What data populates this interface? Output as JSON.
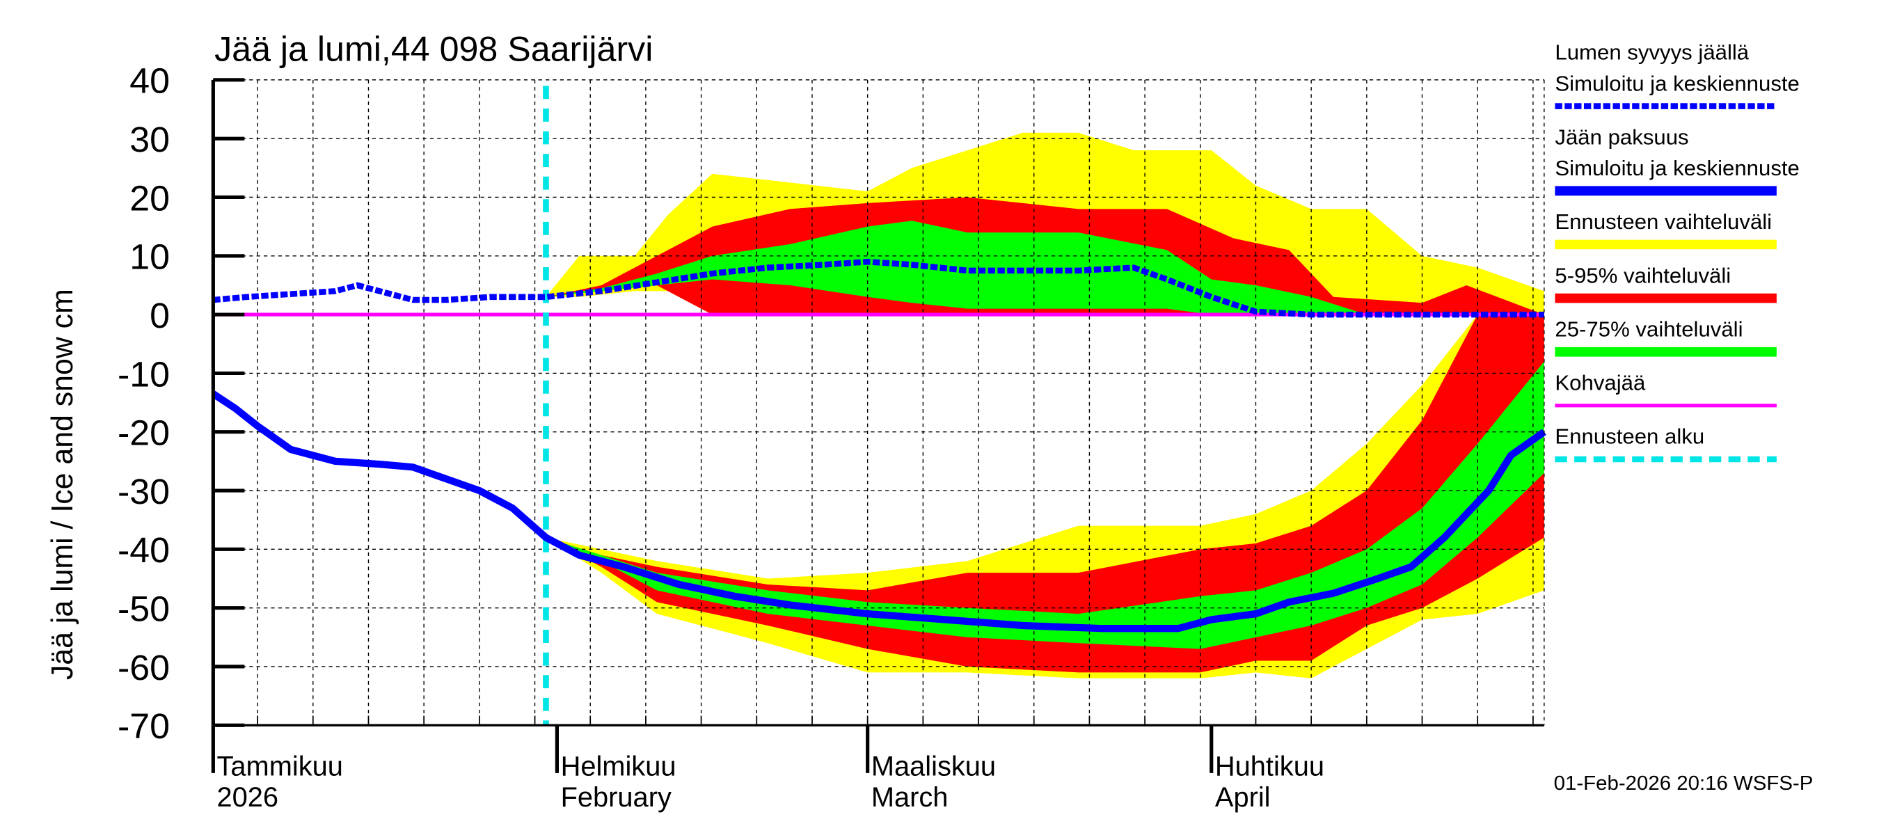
{
  "chart_data": {
    "type": "area",
    "title": "Jää ja lumi,44 098 Saarijärvi",
    "ylabel": "Jää ja lumi / Ice and snow    cm",
    "ylim": [
      -70,
      40
    ],
    "yticks": [
      40,
      30,
      20,
      10,
      0,
      -10,
      -20,
      -30,
      -40,
      -50,
      -60,
      -70
    ],
    "xlim": [
      "2026-01-01",
      "2026-05-01"
    ],
    "grid": true,
    "legend_placement": "right",
    "x_tick_labels": [
      {
        "date": "2026-01-01",
        "fi": "Tammikuu",
        "en": "2026"
      },
      {
        "date": "2026-02-01",
        "fi": "Helmikuu",
        "en": "February"
      },
      {
        "date": "2026-03-01",
        "fi": "Maaliskuu",
        "en": "March"
      },
      {
        "date": "2026-04-01",
        "fi": "Huhtikuu",
        "en": "April"
      }
    ],
    "forecast_start": "2026-01-31",
    "colors": {
      "yellow": "#ffff00",
      "red": "#ff0000",
      "green": "#00ff00",
      "blue": "#0000ff",
      "magenta": "#ff00ff",
      "cyan": "#00e5e5"
    },
    "snow_median": [
      [
        "2026-01-01",
        2.5
      ],
      [
        "2026-01-04",
        3
      ],
      [
        "2026-01-08",
        3.5
      ],
      [
        "2026-01-12",
        4
      ],
      [
        "2026-01-14",
        5
      ],
      [
        "2026-01-16",
        4
      ],
      [
        "2026-01-19",
        2.5
      ],
      [
        "2026-01-22",
        2.5
      ],
      [
        "2026-01-26",
        3
      ],
      [
        "2026-01-31",
        3
      ],
      [
        "2026-02-05",
        4
      ],
      [
        "2026-02-10",
        5.5
      ],
      [
        "2026-02-15",
        7
      ],
      [
        "2026-02-20",
        8
      ],
      [
        "2026-02-25",
        8.5
      ],
      [
        "2026-03-01",
        9
      ],
      [
        "2026-03-05",
        8.5
      ],
      [
        "2026-03-10",
        7.5
      ],
      [
        "2026-03-15",
        7.5
      ],
      [
        "2026-03-20",
        7.5
      ],
      [
        "2026-03-25",
        8
      ],
      [
        "2026-03-28",
        6
      ],
      [
        "2026-04-01",
        3
      ],
      [
        "2026-04-05",
        0.5
      ],
      [
        "2026-04-10",
        0
      ],
      [
        "2026-05-01",
        0
      ]
    ],
    "ice_median": [
      [
        "2026-01-01",
        -13.5
      ],
      [
        "2026-01-03",
        -16
      ],
      [
        "2026-01-05",
        -19
      ],
      [
        "2026-01-08",
        -23
      ],
      [
        "2026-01-12",
        -25
      ],
      [
        "2026-01-16",
        -25.5
      ],
      [
        "2026-01-19",
        -26
      ],
      [
        "2026-01-22",
        -28
      ],
      [
        "2026-01-25",
        -30
      ],
      [
        "2026-01-28",
        -33
      ],
      [
        "2026-01-31",
        -38
      ],
      [
        "2026-02-03",
        -41
      ],
      [
        "2026-02-07",
        -43
      ],
      [
        "2026-02-12",
        -46
      ],
      [
        "2026-02-17",
        -48
      ],
      [
        "2026-02-22",
        -49.5
      ],
      [
        "2026-03-01",
        -51
      ],
      [
        "2026-03-08",
        -52
      ],
      [
        "2026-03-15",
        -53
      ],
      [
        "2026-03-22",
        -53.5
      ],
      [
        "2026-03-29",
        -53.5
      ],
      [
        "2026-04-01",
        -52
      ],
      [
        "2026-04-05",
        -51
      ],
      [
        "2026-04-08",
        -49
      ],
      [
        "2026-04-12",
        -47.5
      ],
      [
        "2026-04-16",
        -45
      ],
      [
        "2026-04-19",
        -43
      ],
      [
        "2026-04-22",
        -38
      ],
      [
        "2026-04-26",
        -30
      ],
      [
        "2026-04-28",
        -24
      ],
      [
        "2026-05-01",
        -20
      ]
    ],
    "slush_ice": 0,
    "bands": {
      "snow_range": [
        [
          "2026-01-31",
          3,
          3
        ],
        [
          "2026-02-03",
          3,
          10
        ],
        [
          "2026-02-08",
          4,
          10
        ],
        [
          "2026-02-11",
          4,
          17
        ],
        [
          "2026-02-15",
          0,
          24
        ],
        [
          "2026-03-01",
          0,
          21
        ],
        [
          "2026-03-05",
          0,
          25
        ],
        [
          "2026-03-15",
          0,
          31
        ],
        [
          "2026-03-20",
          0,
          31
        ],
        [
          "2026-03-25",
          0,
          28
        ],
        [
          "2026-04-01",
          0,
          28
        ],
        [
          "2026-04-05",
          0,
          22
        ],
        [
          "2026-04-10",
          0,
          18
        ],
        [
          "2026-04-15",
          0,
          18
        ],
        [
          "2026-04-20",
          0,
          10
        ],
        [
          "2026-04-25",
          0,
          8
        ],
        [
          "2026-05-01",
          0,
          4
        ]
      ],
      "snow_5_95": [
        [
          "2026-01-31",
          3,
          3
        ],
        [
          "2026-02-05",
          4,
          5
        ],
        [
          "2026-02-10",
          5,
          10
        ],
        [
          "2026-02-15",
          0,
          15
        ],
        [
          "2026-02-22",
          0,
          18
        ],
        [
          "2026-03-01",
          0,
          19
        ],
        [
          "2026-03-10",
          0,
          20
        ],
        [
          "2026-03-20",
          0,
          18
        ],
        [
          "2026-03-28",
          0,
          18
        ],
        [
          "2026-04-03",
          0,
          13
        ],
        [
          "2026-04-08",
          0,
          11
        ],
        [
          "2026-04-12",
          0,
          3
        ],
        [
          "2026-04-20",
          0,
          2
        ],
        [
          "2026-04-24",
          0,
          5
        ],
        [
          "2026-05-01",
          0,
          0
        ]
      ],
      "snow_25_75": [
        [
          "2026-01-31",
          3,
          3
        ],
        [
          "2026-02-05",
          4,
          4.5
        ],
        [
          "2026-02-10",
          5,
          7
        ],
        [
          "2026-02-15",
          6,
          10
        ],
        [
          "2026-02-22",
          5,
          12
        ],
        [
          "2026-03-01",
          3,
          15
        ],
        [
          "2026-03-05",
          2,
          16
        ],
        [
          "2026-03-10",
          1,
          14
        ],
        [
          "2026-03-20",
          1,
          14
        ],
        [
          "2026-03-28",
          1,
          11
        ],
        [
          "2026-04-01",
          0,
          6
        ],
        [
          "2026-04-05",
          0,
          5
        ],
        [
          "2026-04-10",
          0,
          3
        ],
        [
          "2026-04-15",
          0,
          0
        ]
      ],
      "ice_range": [
        [
          "2026-01-31",
          -38,
          -38
        ],
        [
          "2026-02-05",
          -44,
          -40
        ],
        [
          "2026-02-10",
          -51,
          -42
        ],
        [
          "2026-02-20",
          -56,
          -45
        ],
        [
          "2026-03-01",
          -61,
          -44
        ],
        [
          "2026-03-10",
          -61,
          -42
        ],
        [
          "2026-03-20",
          -62,
          -36
        ],
        [
          "2026-03-31",
          -62,
          -36
        ],
        [
          "2026-04-05",
          -61,
          -34
        ],
        [
          "2026-04-10",
          -62,
          -30
        ],
        [
          "2026-04-15",
          -57,
          -22
        ],
        [
          "2026-04-20",
          -52,
          -12
        ],
        [
          "2026-04-25",
          -51,
          0
        ],
        [
          "2026-05-01",
          -47,
          0
        ]
      ],
      "ice_5_95": [
        [
          "2026-01-31",
          -38,
          -38
        ],
        [
          "2026-02-05",
          -43,
          -41
        ],
        [
          "2026-02-10",
          -49,
          -43
        ],
        [
          "2026-02-20",
          -53,
          -46
        ],
        [
          "2026-03-01",
          -57,
          -47
        ],
        [
          "2026-03-10",
          -60,
          -44
        ],
        [
          "2026-03-20",
          -61,
          -44
        ],
        [
          "2026-03-31",
          -61,
          -40
        ],
        [
          "2026-04-05",
          -59,
          -39
        ],
        [
          "2026-04-10",
          -59,
          -36
        ],
        [
          "2026-04-15",
          -53,
          -30
        ],
        [
          "2026-04-20",
          -50,
          -18
        ],
        [
          "2026-04-25",
          -45,
          0
        ],
        [
          "2026-05-01",
          -38,
          0
        ]
      ],
      "ice_25_75": [
        [
          "2026-01-31",
          -38,
          -38
        ],
        [
          "2026-02-05",
          -42,
          -41
        ],
        [
          "2026-02-10",
          -47,
          -44
        ],
        [
          "2026-02-20",
          -51,
          -47
        ],
        [
          "2026-03-01",
          -53,
          -49
        ],
        [
          "2026-03-10",
          -55,
          -50
        ],
        [
          "2026-03-20",
          -56,
          -51
        ],
        [
          "2026-03-31",
          -57,
          -48
        ],
        [
          "2026-04-05",
          -55,
          -47
        ],
        [
          "2026-04-10",
          -53,
          -44
        ],
        [
          "2026-04-15",
          -50,
          -40
        ],
        [
          "2026-04-20",
          -46,
          -33
        ],
        [
          "2026-04-25",
          -38,
          -22
        ],
        [
          "2026-05-01",
          -27,
          -8
        ]
      ]
    },
    "legend": [
      {
        "line1": "Lumen syvyys jäällä",
        "line2": "Simuloitu ja keskiennuste",
        "style": "dashed",
        "color": "#0000ff"
      },
      {
        "line1": "Jään paksuus",
        "line2": "Simuloitu ja keskiennuste",
        "style": "solid",
        "color": "#0000ff"
      },
      {
        "line1": "Ennusteen vaihteluväli",
        "style": "solid",
        "color": "#ffff00"
      },
      {
        "line1": "5-95% vaihteluväli",
        "style": "solid",
        "color": "#ff0000"
      },
      {
        "line1": "25-75% vaihteluväli",
        "style": "solid",
        "color": "#00ff00"
      },
      {
        "line1": "Kohvajää",
        "style": "thin",
        "color": "#ff00ff"
      },
      {
        "line1": "Ennusteen alku",
        "style": "dashed",
        "color": "#00e5e5"
      }
    ],
    "footer": "01-Feb-2026 20:16 WSFS-P"
  }
}
